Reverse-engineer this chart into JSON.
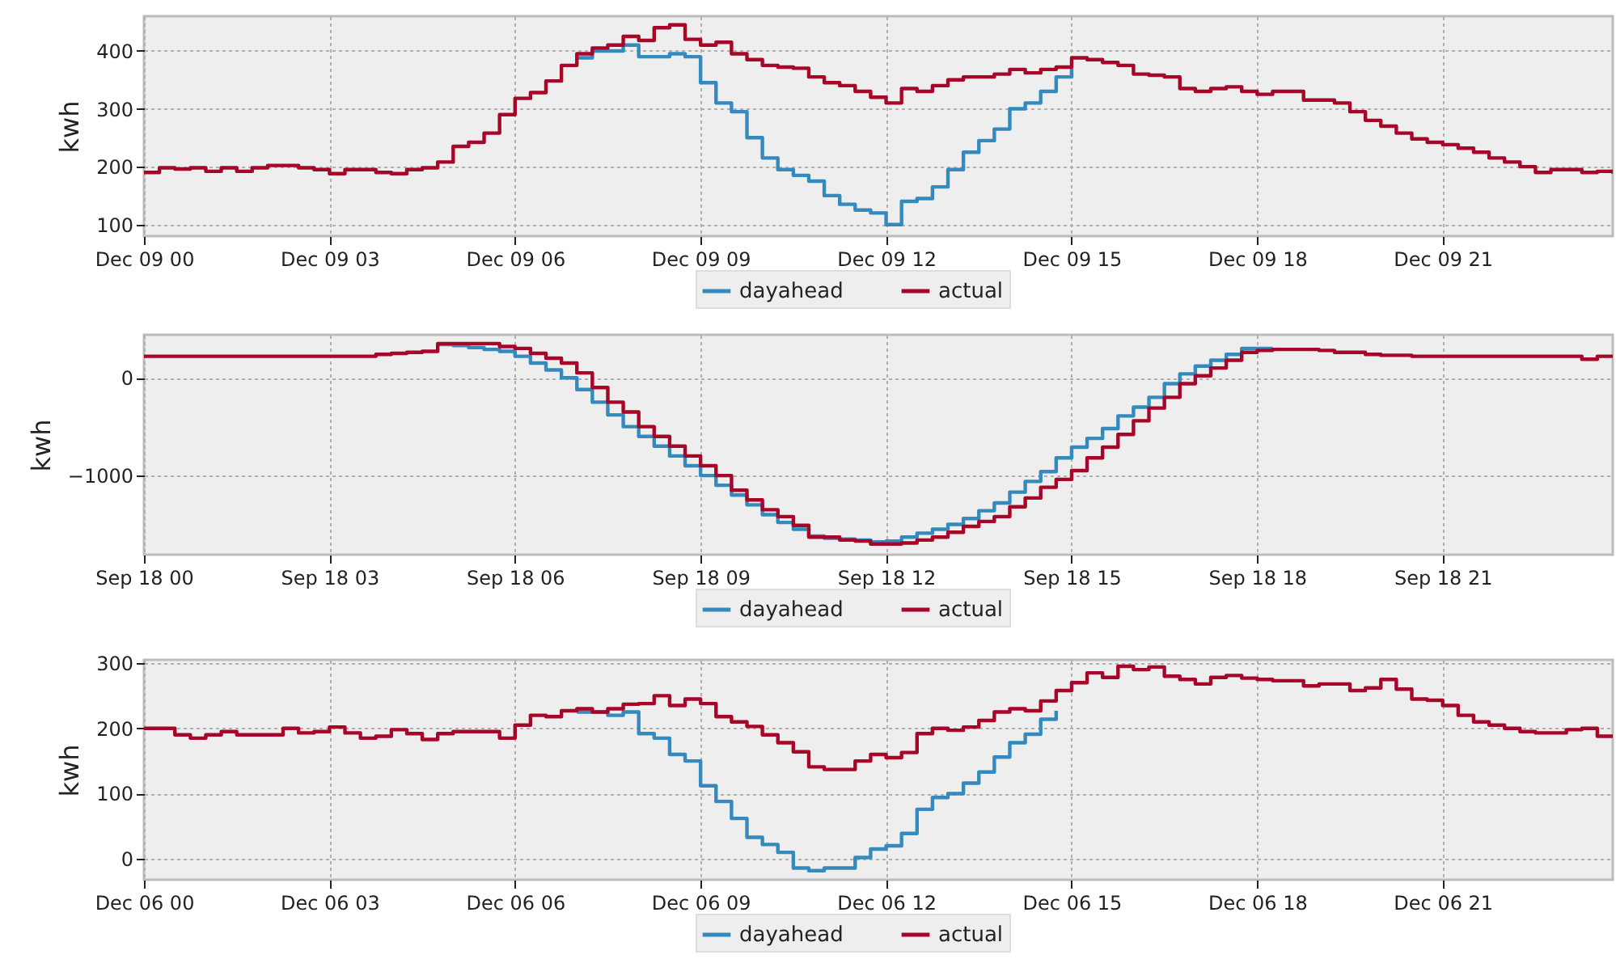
{
  "chart_data": [
    {
      "type": "step",
      "ylabel": "kwh",
      "xlim": [
        "--12-09T00:00",
        "--12-09T23:45"
      ],
      "xticks": [
        {
          "value": "--12-09T00:00",
          "label": "Dec 09 00"
        },
        {
          "value": "--12-09T03:00",
          "label": "Dec 09 03"
        },
        {
          "value": "--12-09T06:00",
          "label": "Dec 09 06"
        },
        {
          "value": "--12-09T09:00",
          "label": "Dec 09 09"
        },
        {
          "value": "--12-09T12:00",
          "label": "Dec 09 12"
        },
        {
          "value": "--12-09T15:00",
          "label": "Dec 09 15"
        },
        {
          "value": "--12-09T18:00",
          "label": "Dec 09 18"
        },
        {
          "value": "--12-09T21:00",
          "label": "Dec 09 21"
        }
      ],
      "ylim": [
        80,
        460
      ],
      "yticks": [
        100,
        200,
        300,
        400
      ],
      "grid": true,
      "legend": "bottom",
      "series": [
        {
          "name": "dayahead",
          "color": "#348abd",
          "x": [
            "--12-09T07:00",
            "--12-09T07:15",
            "--12-09T07:30",
            "--12-09T07:45",
            "--12-09T08:00",
            "--12-09T08:15",
            "--12-09T08:30",
            "--12-09T08:45",
            "--12-09T09:00",
            "--12-09T09:15",
            "--12-09T09:30",
            "--12-09T09:45",
            "--12-09T10:00",
            "--12-09T10:15",
            "--12-09T10:30",
            "--12-09T10:45",
            "--12-09T11:00",
            "--12-09T11:15",
            "--12-09T11:30",
            "--12-09T11:45",
            "--12-09T12:00",
            "--12-09T12:15",
            "--12-09T12:30",
            "--12-09T12:45",
            "--12-09T13:00",
            "--12-09T13:15",
            "--12-09T13:30",
            "--12-09T13:45",
            "--12-09T14:00",
            "--12-09T14:15",
            "--12-09T14:30",
            "--12-09T14:45",
            "--12-09T15:00"
          ],
          "values": [
            388,
            400,
            400,
            410,
            390,
            390,
            395,
            390,
            345,
            310,
            295,
            250,
            215,
            195,
            185,
            175,
            150,
            135,
            125,
            120,
            100,
            140,
            145,
            165,
            195,
            225,
            245,
            265,
            300,
            310,
            330,
            355,
            370
          ]
        },
        {
          "name": "actual",
          "color": "#a60628",
          "x": [
            "--12-09T00:00",
            "--12-09T00:15",
            "--12-09T00:30",
            "--12-09T00:45",
            "--12-09T01:00",
            "--12-09T01:15",
            "--12-09T01:30",
            "--12-09T01:45",
            "--12-09T02:00",
            "--12-09T02:15",
            "--12-09T02:30",
            "--12-09T02:45",
            "--12-09T03:00",
            "--12-09T03:15",
            "--12-09T03:30",
            "--12-09T03:45",
            "--12-09T04:00",
            "--12-09T04:15",
            "--12-09T04:30",
            "--12-09T04:45",
            "--12-09T05:00",
            "--12-09T05:15",
            "--12-09T05:30",
            "--12-09T05:45",
            "--12-09T06:00",
            "--12-09T06:15",
            "--12-09T06:30",
            "--12-09T06:45",
            "--12-09T07:00",
            "--12-09T07:15",
            "--12-09T07:30",
            "--12-09T07:45",
            "--12-09T08:00",
            "--12-09T08:15",
            "--12-09T08:30",
            "--12-09T08:45",
            "--12-09T09:00",
            "--12-09T09:15",
            "--12-09T09:30",
            "--12-09T09:45",
            "--12-09T10:00",
            "--12-09T10:15",
            "--12-09T10:30",
            "--12-09T10:45",
            "--12-09T11:00",
            "--12-09T11:15",
            "--12-09T11:30",
            "--12-09T11:45",
            "--12-09T12:00",
            "--12-09T12:15",
            "--12-09T12:30",
            "--12-09T12:45",
            "--12-09T13:00",
            "--12-09T13:15",
            "--12-09T13:30",
            "--12-09T13:45",
            "--12-09T14:00",
            "--12-09T14:15",
            "--12-09T14:30",
            "--12-09T14:45",
            "--12-09T15:00",
            "--12-09T15:15",
            "--12-09T15:30",
            "--12-09T15:45",
            "--12-09T16:00",
            "--12-09T16:15",
            "--12-09T16:30",
            "--12-09T16:45",
            "--12-09T17:00",
            "--12-09T17:15",
            "--12-09T17:30",
            "--12-09T17:45",
            "--12-09T18:00",
            "--12-09T18:15",
            "--12-09T18:30",
            "--12-09T18:45",
            "--12-09T19:00",
            "--12-09T19:15",
            "--12-09T19:30",
            "--12-09T19:45",
            "--12-09T20:00",
            "--12-09T20:15",
            "--12-09T20:30",
            "--12-09T20:45",
            "--12-09T21:00",
            "--12-09T21:15",
            "--12-09T21:30",
            "--12-09T21:45",
            "--12-09T22:00",
            "--12-09T22:15",
            "--12-09T22:30",
            "--12-09T22:45",
            "--12-09T23:00",
            "--12-09T23:15",
            "--12-09T23:30",
            "--12-09T23:45"
          ],
          "values": [
            190,
            198,
            196,
            198,
            192,
            198,
            192,
            198,
            202,
            202,
            198,
            195,
            188,
            195,
            195,
            190,
            188,
            195,
            198,
            208,
            235,
            242,
            258,
            290,
            318,
            328,
            348,
            375,
            395,
            405,
            410,
            425,
            418,
            440,
            445,
            420,
            410,
            415,
            395,
            385,
            375,
            372,
            370,
            355,
            345,
            340,
            330,
            320,
            310,
            335,
            330,
            340,
            350,
            355,
            355,
            360,
            368,
            362,
            368,
            372,
            388,
            385,
            380,
            375,
            360,
            358,
            355,
            335,
            330,
            335,
            338,
            330,
            325,
            330,
            330,
            315,
            315,
            310,
            295,
            280,
            270,
            258,
            248,
            242,
            238,
            232,
            225,
            215,
            208,
            200,
            190,
            195,
            195,
            190,
            192,
            188
          ]
        }
      ]
    },
    {
      "type": "step",
      "ylabel": "kwh",
      "xlim": [
        "--09-18T00:00",
        "--09-18T23:45"
      ],
      "xticks": [
        {
          "value": "--09-18T00:00",
          "label": "Sep 18 00"
        },
        {
          "value": "--09-18T03:00",
          "label": "Sep 18 03"
        },
        {
          "value": "--09-18T06:00",
          "label": "Sep 18 06"
        },
        {
          "value": "--09-18T09:00",
          "label": "Sep 18 09"
        },
        {
          "value": "--09-18T12:00",
          "label": "Sep 18 12"
        },
        {
          "value": "--09-18T15:00",
          "label": "Sep 18 15"
        },
        {
          "value": "--09-18T18:00",
          "label": "Sep 18 18"
        },
        {
          "value": "--09-18T21:00",
          "label": "Sep 18 21"
        }
      ],
      "ylim": [
        -1810,
        440
      ],
      "yticks": [
        {
          "value": -1000,
          "label": "−1000"
        },
        0
      ],
      "grid": true,
      "legend": "bottom",
      "series": [
        {
          "name": "dayahead",
          "color": "#348abd",
          "x": [
            "--09-18T04:45",
            "--09-18T05:00",
            "--09-18T05:15",
            "--09-18T05:30",
            "--09-18T05:45",
            "--09-18T06:00",
            "--09-18T06:15",
            "--09-18T06:30",
            "--09-18T06:45",
            "--09-18T07:00",
            "--09-18T07:15",
            "--09-18T07:30",
            "--09-18T07:45",
            "--09-18T08:00",
            "--09-18T08:15",
            "--09-18T08:30",
            "--09-18T08:45",
            "--09-18T09:00",
            "--09-18T09:15",
            "--09-18T09:30",
            "--09-18T09:45",
            "--09-18T10:00",
            "--09-18T10:15",
            "--09-18T10:30",
            "--09-18T10:45",
            "--09-18T11:00",
            "--09-18T11:15",
            "--09-18T11:30",
            "--09-18T11:45",
            "--09-18T12:00",
            "--09-18T12:15",
            "--09-18T12:30",
            "--09-18T12:45",
            "--09-18T13:00",
            "--09-18T13:15",
            "--09-18T13:30",
            "--09-18T13:45",
            "--09-18T14:00",
            "--09-18T14:15",
            "--09-18T14:30",
            "--09-18T14:45",
            "--09-18T15:00",
            "--09-18T15:15",
            "--09-18T15:30",
            "--09-18T15:45",
            "--09-18T16:00",
            "--09-18T16:15",
            "--09-18T16:30",
            "--09-18T16:45",
            "--09-18T17:00",
            "--09-18T17:15",
            "--09-18T17:30",
            "--09-18T17:45",
            "--09-18T18:00",
            "--09-18T18:15"
          ],
          "values": [
            340,
            330,
            310,
            290,
            270,
            220,
            150,
            80,
            0,
            -120,
            -250,
            -380,
            -500,
            -600,
            -700,
            -800,
            -900,
            -1000,
            -1100,
            -1200,
            -1300,
            -1400,
            -1480,
            -1550,
            -1620,
            -1640,
            -1650,
            -1660,
            -1680,
            -1670,
            -1630,
            -1590,
            -1550,
            -1500,
            -1440,
            -1360,
            -1280,
            -1170,
            -1060,
            -960,
            -820,
            -710,
            -620,
            -520,
            -390,
            -300,
            -200,
            -60,
            40,
            120,
            180,
            240,
            300,
            300,
            300
          ]
        },
        {
          "name": "actual",
          "color": "#a60628",
          "x": [
            "--09-18T00:00",
            "--09-18T00:15",
            "--09-18T00:30",
            "--09-18T00:45",
            "--09-18T01:00",
            "--09-18T01:15",
            "--09-18T01:30",
            "--09-18T01:45",
            "--09-18T02:00",
            "--09-18T02:15",
            "--09-18T02:30",
            "--09-18T02:45",
            "--09-18T03:00",
            "--09-18T03:15",
            "--09-18T03:30",
            "--09-18T03:45",
            "--09-18T04:00",
            "--09-18T04:15",
            "--09-18T04:30",
            "--09-18T04:45",
            "--09-18T05:00",
            "--09-18T05:15",
            "--09-18T05:30",
            "--09-18T05:45",
            "--09-18T06:00",
            "--09-18T06:15",
            "--09-18T06:30",
            "--09-18T06:45",
            "--09-18T07:00",
            "--09-18T07:15",
            "--09-18T07:30",
            "--09-18T07:45",
            "--09-18T08:00",
            "--09-18T08:15",
            "--09-18T08:30",
            "--09-18T08:45",
            "--09-18T09:00",
            "--09-18T09:15",
            "--09-18T09:30",
            "--09-18T09:45",
            "--09-18T10:00",
            "--09-18T10:15",
            "--09-18T10:30",
            "--09-18T10:45",
            "--09-18T11:00",
            "--09-18T11:15",
            "--09-18T11:30",
            "--09-18T11:45",
            "--09-18T12:00",
            "--09-18T12:15",
            "--09-18T12:30",
            "--09-18T12:45",
            "--09-18T13:00",
            "--09-18T13:15",
            "--09-18T13:30",
            "--09-18T13:45",
            "--09-18T14:00",
            "--09-18T14:15",
            "--09-18T14:30",
            "--09-18T14:45",
            "--09-18T15:00",
            "--09-18T15:15",
            "--09-18T15:30",
            "--09-18T15:45",
            "--09-18T16:00",
            "--09-18T16:15",
            "--09-18T16:30",
            "--09-18T16:45",
            "--09-18T17:00",
            "--09-18T17:15",
            "--09-18T17:30",
            "--09-18T17:45",
            "--09-18T18:00",
            "--09-18T18:15",
            "--09-18T18:30",
            "--09-18T18:45",
            "--09-18T19:00",
            "--09-18T19:15",
            "--09-18T19:30",
            "--09-18T19:45",
            "--09-18T20:00",
            "--09-18T20:15",
            "--09-18T20:30",
            "--09-18T20:45",
            "--09-18T21:00",
            "--09-18T21:15",
            "--09-18T21:30",
            "--09-18T21:45",
            "--09-18T22:00",
            "--09-18T22:15",
            "--09-18T22:30",
            "--09-18T22:45",
            "--09-18T23:00",
            "--09-18T23:15",
            "--09-18T23:30",
            "--09-18T23:45"
          ],
          "values": [
            220,
            220,
            220,
            220,
            220,
            220,
            220,
            220,
            220,
            220,
            220,
            220,
            220,
            220,
            220,
            240,
            250,
            260,
            270,
            350,
            350,
            350,
            350,
            320,
            300,
            250,
            200,
            150,
            50,
            -100,
            -250,
            -350,
            -500,
            -600,
            -700,
            -800,
            -900,
            -1000,
            -1150,
            -1250,
            -1350,
            -1420,
            -1510,
            -1630,
            -1630,
            -1660,
            -1670,
            -1700,
            -1700,
            -1690,
            -1660,
            -1630,
            -1580,
            -1520,
            -1470,
            -1420,
            -1320,
            -1230,
            -1120,
            -1040,
            -950,
            -820,
            -710,
            -580,
            -440,
            -310,
            -200,
            -60,
            20,
            100,
            180,
            260,
            280,
            290,
            290,
            290,
            280,
            260,
            260,
            240,
            230,
            230,
            220,
            220,
            220,
            220,
            220,
            220,
            220,
            220,
            220,
            220,
            220,
            190,
            220,
            220
          ]
        }
      ]
    },
    {
      "type": "step",
      "ylabel": "kwh",
      "xlim": [
        "--12-06T00:00",
        "--12-06T23:45"
      ],
      "xticks": [
        {
          "value": "--12-06T00:00",
          "label": "Dec 06 00"
        },
        {
          "value": "--12-06T03:00",
          "label": "Dec 06 03"
        },
        {
          "value": "--12-06T06:00",
          "label": "Dec 06 06"
        },
        {
          "value": "--12-06T09:00",
          "label": "Dec 06 09"
        },
        {
          "value": "--12-06T12:00",
          "label": "Dec 06 12"
        },
        {
          "value": "--12-06T15:00",
          "label": "Dec 06 15"
        },
        {
          "value": "--12-06T18:00",
          "label": "Dec 06 18"
        },
        {
          "value": "--12-06T21:00",
          "label": "Dec 06 21"
        }
      ],
      "ylim": [
        -32,
        305
      ],
      "yticks": [
        0,
        100,
        200,
        300
      ],
      "grid": true,
      "legend": "bottom",
      "series": [
        {
          "name": "dayahead",
          "color": "#348abd",
          "x": [
            "--12-06T07:00",
            "--12-06T07:15",
            "--12-06T07:30",
            "--12-06T07:45",
            "--12-06T08:00",
            "--12-06T08:15",
            "--12-06T08:30",
            "--12-06T08:45",
            "--12-06T09:00",
            "--12-06T09:15",
            "--12-06T09:30",
            "--12-06T09:45",
            "--12-06T10:00",
            "--12-06T10:15",
            "--12-06T10:30",
            "--12-06T10:45",
            "--12-06T11:00",
            "--12-06T11:15",
            "--12-06T11:30",
            "--12-06T11:45",
            "--12-06T12:00",
            "--12-06T12:15",
            "--12-06T12:30",
            "--12-06T12:45",
            "--12-06T13:00",
            "--12-06T13:15",
            "--12-06T13:30",
            "--12-06T13:45",
            "--12-06T14:00",
            "--12-06T14:15",
            "--12-06T14:30",
            "--12-06T14:45"
          ],
          "values": [
            225,
            225,
            220,
            225,
            192,
            185,
            160,
            150,
            112,
            88,
            62,
            33,
            22,
            10,
            -14,
            -18,
            -14,
            -14,
            2,
            15,
            20,
            39,
            76,
            94,
            100,
            116,
            133,
            156,
            178,
            191,
            214,
            227
          ]
        },
        {
          "name": "actual",
          "color": "#a60628",
          "x": [
            "--12-06T00:00",
            "--12-06T00:15",
            "--12-06T00:30",
            "--12-06T00:45",
            "--12-06T01:00",
            "--12-06T01:15",
            "--12-06T01:30",
            "--12-06T01:45",
            "--12-06T02:00",
            "--12-06T02:15",
            "--12-06T02:30",
            "--12-06T02:45",
            "--12-06T03:00",
            "--12-06T03:15",
            "--12-06T03:30",
            "--12-06T03:45",
            "--12-06T04:00",
            "--12-06T04:15",
            "--12-06T04:30",
            "--12-06T04:45",
            "--12-06T05:00",
            "--12-06T05:15",
            "--12-06T05:30",
            "--12-06T05:45",
            "--12-06T06:00",
            "--12-06T06:15",
            "--12-06T06:30",
            "--12-06T06:45",
            "--12-06T07:00",
            "--12-06T07:15",
            "--12-06T07:30",
            "--12-06T07:45",
            "--12-06T08:00",
            "--12-06T08:15",
            "--12-06T08:30",
            "--12-06T08:45",
            "--12-06T09:00",
            "--12-06T09:15",
            "--12-06T09:30",
            "--12-06T09:45",
            "--12-06T10:00",
            "--12-06T10:15",
            "--12-06T10:30",
            "--12-06T10:45",
            "--12-06T11:00",
            "--12-06T11:15",
            "--12-06T11:30",
            "--12-06T11:45",
            "--12-06T12:00",
            "--12-06T12:15",
            "--12-06T12:30",
            "--12-06T12:45",
            "--12-06T13:00",
            "--12-06T13:15",
            "--12-06T13:30",
            "--12-06T13:45",
            "--12-06T14:00",
            "--12-06T14:15",
            "--12-06T14:30",
            "--12-06T14:45",
            "--12-06T15:00",
            "--12-06T15:15",
            "--12-06T15:30",
            "--12-06T15:45",
            "--12-06T16:00",
            "--12-06T16:15",
            "--12-06T16:30",
            "--12-06T16:45",
            "--12-06T17:00",
            "--12-06T17:15",
            "--12-06T17:30",
            "--12-06T17:45",
            "--12-06T18:00",
            "--12-06T18:15",
            "--12-06T18:30",
            "--12-06T18:45",
            "--12-06T19:00",
            "--12-06T19:15",
            "--12-06T19:30",
            "--12-06T19:45",
            "--12-06T20:00",
            "--12-06T20:15",
            "--12-06T20:30",
            "--12-06T20:45",
            "--12-06T21:00",
            "--12-06T21:15",
            "--12-06T21:30",
            "--12-06T21:45",
            "--12-06T22:00",
            "--12-06T22:15",
            "--12-06T22:30",
            "--12-06T22:45",
            "--12-06T23:00",
            "--12-06T23:15",
            "--12-06T23:30",
            "--12-06T23:45"
          ],
          "values": [
            200,
            200,
            190,
            185,
            190,
            195,
            190,
            190,
            190,
            200,
            193,
            195,
            202,
            193,
            185,
            188,
            198,
            192,
            183,
            192,
            195,
            195,
            195,
            185,
            205,
            220,
            218,
            227,
            230,
            225,
            230,
            237,
            238,
            250,
            235,
            245,
            238,
            218,
            210,
            203,
            190,
            178,
            164,
            141,
            137,
            137,
            150,
            160,
            155,
            163,
            192,
            200,
            197,
            202,
            212,
            225,
            230,
            227,
            242,
            258,
            270,
            285,
            278,
            295,
            290,
            294,
            280,
            275,
            268,
            278,
            281,
            277,
            275,
            273,
            273,
            265,
            268,
            268,
            258,
            262,
            275,
            260,
            245,
            243,
            235,
            220,
            210,
            205,
            200,
            195,
            193,
            193,
            198,
            200,
            188,
            188
          ]
        }
      ]
    }
  ]
}
